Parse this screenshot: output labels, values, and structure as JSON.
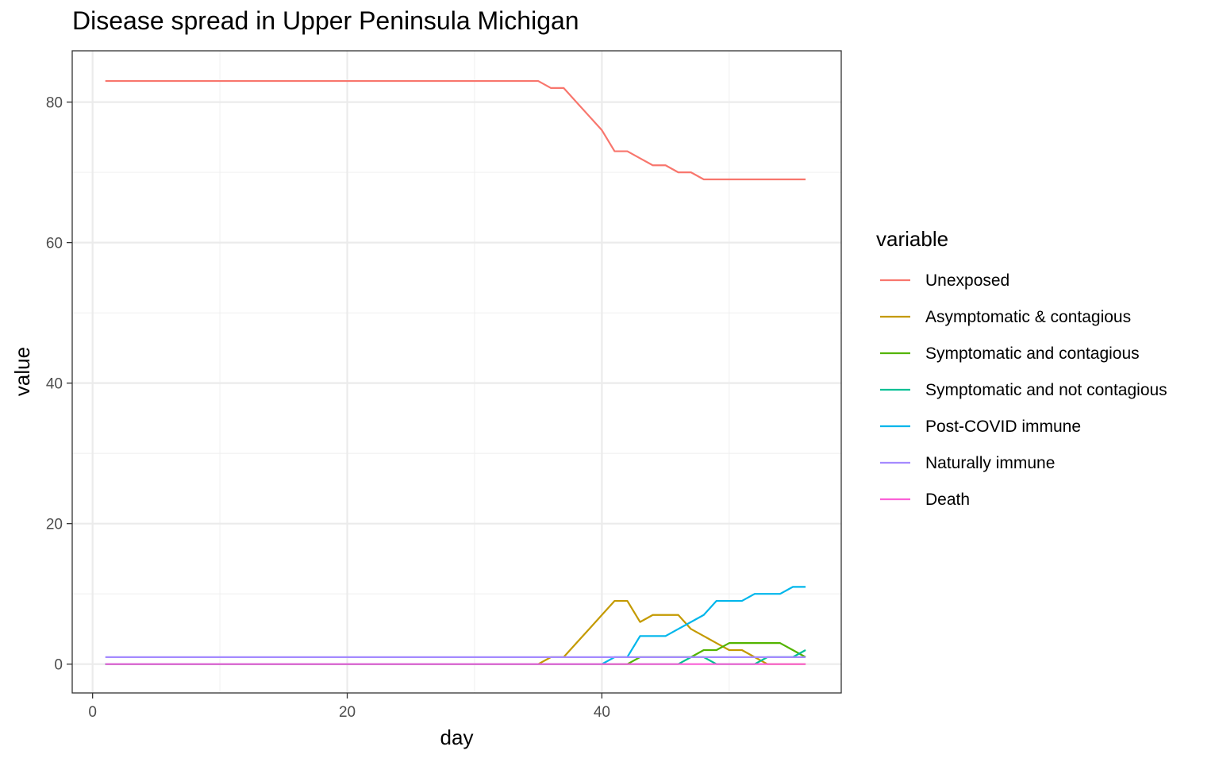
{
  "chart_data": {
    "type": "line",
    "title": "Disease spread in Upper Peninsula Michigan",
    "xlabel": "day",
    "ylabel": "value",
    "xlim": [
      -1.6,
      58.8
    ],
    "ylim": [
      -4.1,
      87.3
    ],
    "x_ticks": [
      0,
      20,
      40
    ],
    "y_ticks": [
      0,
      20,
      40,
      60,
      80
    ],
    "grid": true,
    "legend_title": "variable",
    "legend_position": "right",
    "x": [
      1,
      2,
      3,
      4,
      5,
      6,
      7,
      8,
      9,
      10,
      11,
      12,
      13,
      14,
      15,
      16,
      17,
      18,
      19,
      20,
      21,
      22,
      23,
      24,
      25,
      26,
      27,
      28,
      29,
      30,
      31,
      32,
      33,
      34,
      35,
      36,
      37,
      38,
      39,
      40,
      41,
      42,
      43,
      44,
      45,
      46,
      47,
      48,
      49,
      50,
      51,
      52,
      53,
      54,
      55,
      56
    ],
    "series": [
      {
        "name": "Unexposed",
        "color": "#F8766D",
        "values": [
          83,
          83,
          83,
          83,
          83,
          83,
          83,
          83,
          83,
          83,
          83,
          83,
          83,
          83,
          83,
          83,
          83,
          83,
          83,
          83,
          83,
          83,
          83,
          83,
          83,
          83,
          83,
          83,
          83,
          83,
          83,
          83,
          83,
          83,
          83,
          82,
          82,
          80,
          78,
          76,
          73,
          73,
          72,
          71,
          71,
          70,
          70,
          69,
          69,
          69,
          69,
          69,
          69,
          69,
          69,
          69
        ]
      },
      {
        "name": "Asymptomatic & contagious",
        "color": "#C49A00",
        "values": [
          0,
          0,
          0,
          0,
          0,
          0,
          0,
          0,
          0,
          0,
          0,
          0,
          0,
          0,
          0,
          0,
          0,
          0,
          0,
          0,
          0,
          0,
          0,
          0,
          0,
          0,
          0,
          0,
          0,
          0,
          0,
          0,
          0,
          0,
          0,
          1,
          1,
          3,
          5,
          7,
          9,
          9,
          6,
          7,
          7,
          7,
          5,
          4,
          3,
          2,
          2,
          1,
          0,
          0,
          0,
          0
        ]
      },
      {
        "name": "Symptomatic and contagious",
        "color": "#53B400",
        "values": [
          0,
          0,
          0,
          0,
          0,
          0,
          0,
          0,
          0,
          0,
          0,
          0,
          0,
          0,
          0,
          0,
          0,
          0,
          0,
          0,
          0,
          0,
          0,
          0,
          0,
          0,
          0,
          0,
          0,
          0,
          0,
          0,
          0,
          0,
          0,
          0,
          0,
          0,
          0,
          0,
          0,
          0,
          1,
          1,
          1,
          1,
          1,
          2,
          2,
          3,
          3,
          3,
          3,
          3,
          2,
          1
        ]
      },
      {
        "name": "Symptomatic and not contagious",
        "color": "#00C094",
        "values": [
          0,
          0,
          0,
          0,
          0,
          0,
          0,
          0,
          0,
          0,
          0,
          0,
          0,
          0,
          0,
          0,
          0,
          0,
          0,
          0,
          0,
          0,
          0,
          0,
          0,
          0,
          0,
          0,
          0,
          0,
          0,
          0,
          0,
          0,
          0,
          0,
          0,
          0,
          0,
          0,
          0,
          0,
          0,
          0,
          0,
          0,
          1,
          1,
          0,
          0,
          0,
          0,
          1,
          1,
          1,
          2
        ]
      },
      {
        "name": "Post-COVID immune",
        "color": "#00B6EB",
        "values": [
          0,
          0,
          0,
          0,
          0,
          0,
          0,
          0,
          0,
          0,
          0,
          0,
          0,
          0,
          0,
          0,
          0,
          0,
          0,
          0,
          0,
          0,
          0,
          0,
          0,
          0,
          0,
          0,
          0,
          0,
          0,
          0,
          0,
          0,
          0,
          0,
          0,
          0,
          0,
          0,
          1,
          1,
          4,
          4,
          4,
          5,
          6,
          7,
          9,
          9,
          9,
          10,
          10,
          10,
          11,
          11
        ]
      },
      {
        "name": "Naturally immune",
        "color": "#A58AFF",
        "values": [
          1,
          1,
          1,
          1,
          1,
          1,
          1,
          1,
          1,
          1,
          1,
          1,
          1,
          1,
          1,
          1,
          1,
          1,
          1,
          1,
          1,
          1,
          1,
          1,
          1,
          1,
          1,
          1,
          1,
          1,
          1,
          1,
          1,
          1,
          1,
          1,
          1,
          1,
          1,
          1,
          1,
          1,
          1,
          1,
          1,
          1,
          1,
          1,
          1,
          1,
          1,
          1,
          1,
          1,
          1,
          1
        ]
      },
      {
        "name": "Death",
        "color": "#FB61D7",
        "values": [
          0,
          0,
          0,
          0,
          0,
          0,
          0,
          0,
          0,
          0,
          0,
          0,
          0,
          0,
          0,
          0,
          0,
          0,
          0,
          0,
          0,
          0,
          0,
          0,
          0,
          0,
          0,
          0,
          0,
          0,
          0,
          0,
          0,
          0,
          0,
          0,
          0,
          0,
          0,
          0,
          0,
          0,
          0,
          0,
          0,
          0,
          0,
          0,
          0,
          0,
          0,
          0,
          0,
          0,
          0,
          0
        ]
      }
    ]
  }
}
